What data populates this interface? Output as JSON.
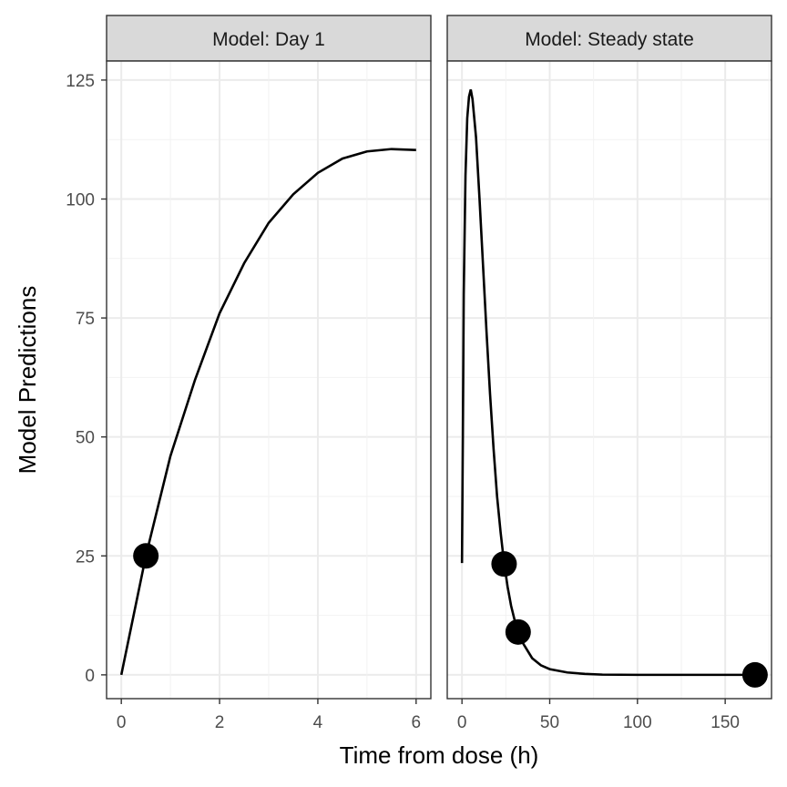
{
  "chart_data": {
    "type": "line",
    "ylabel": "Model Predictions",
    "xlabel": "Time from dose (h)",
    "ylim": [
      -5,
      129
    ],
    "yticks": [
      0,
      25,
      50,
      75,
      100,
      125
    ],
    "grid": true,
    "panels": [
      {
        "strip": "Model: Day 1",
        "xlim": [
          -0.3,
          6.3
        ],
        "xticks": [
          0,
          2,
          4,
          6
        ],
        "curve": [
          [
            0,
            0
          ],
          [
            0.5,
            25
          ],
          [
            1,
            46
          ],
          [
            1.5,
            62
          ],
          [
            2,
            76
          ],
          [
            2.5,
            86.5
          ],
          [
            3,
            95
          ],
          [
            3.5,
            101
          ],
          [
            4,
            105.5
          ],
          [
            4.5,
            108.5
          ],
          [
            5,
            110
          ],
          [
            5.5,
            110.5
          ],
          [
            6,
            110.3
          ]
        ],
        "points": [
          {
            "x": 0.5,
            "y": 25
          }
        ]
      },
      {
        "strip": "Model: Steady state",
        "xlim": [
          -8.4,
          176.4
        ],
        "xticks": [
          0,
          50,
          100,
          150
        ],
        "curve": [
          [
            0,
            23.5
          ],
          [
            0.5,
            50
          ],
          [
            1,
            80
          ],
          [
            2,
            105
          ],
          [
            3,
            117
          ],
          [
            4,
            121.5
          ],
          [
            5,
            123
          ],
          [
            6,
            121
          ],
          [
            8,
            113
          ],
          [
            10,
            100
          ],
          [
            12,
            86
          ],
          [
            14,
            72
          ],
          [
            16,
            59
          ],
          [
            18,
            47.5
          ],
          [
            20,
            37.5
          ],
          [
            22,
            30
          ],
          [
            24,
            23.5
          ],
          [
            26,
            18.5
          ],
          [
            28,
            14.5
          ],
          [
            30,
            11.5
          ],
          [
            32,
            9
          ],
          [
            35,
            6.5
          ],
          [
            40,
            3.5
          ],
          [
            45,
            2
          ],
          [
            50,
            1.2
          ],
          [
            60,
            0.5
          ],
          [
            70,
            0.2
          ],
          [
            80,
            0.05
          ],
          [
            100,
            0
          ],
          [
            168,
            0
          ]
        ],
        "points": [
          {
            "x": 24,
            "y": 23.3
          },
          {
            "x": 32,
            "y": 9
          },
          {
            "x": 167,
            "y": 0
          }
        ]
      }
    ]
  }
}
